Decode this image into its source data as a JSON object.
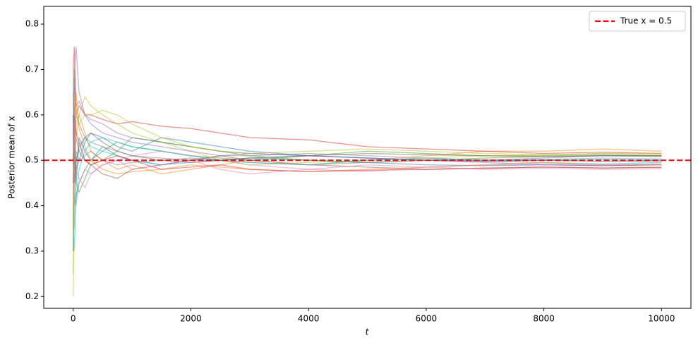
{
  "chart_data": {
    "type": "line",
    "xlabel": "t",
    "ylabel": "Posterior mean of x",
    "x": [
      0,
      20,
      50,
      100,
      200,
      300,
      500,
      750,
      1000,
      1500,
      2000,
      2500,
      3000,
      4000,
      5000,
      6000,
      7000,
      8000,
      9000,
      10000
    ],
    "series": [
      {
        "color": "#1f77b4",
        "values": [
          0.5,
          0.62,
          0.45,
          0.55,
          0.52,
          0.5,
          0.53,
          0.51,
          0.5,
          0.49,
          0.5,
          0.5,
          0.505,
          0.5,
          0.495,
          0.49,
          0.488,
          0.49,
          0.488,
          0.49
        ]
      },
      {
        "color": "#ff7f0e",
        "values": [
          0.3,
          0.7,
          0.55,
          0.6,
          0.56,
          0.52,
          0.5,
          0.48,
          0.49,
          0.47,
          0.48,
          0.49,
          0.5,
          0.49,
          0.5,
          0.51,
          0.52,
          0.52,
          0.525,
          0.52
        ]
      },
      {
        "color": "#2ca02c",
        "values": [
          0.6,
          0.4,
          0.42,
          0.45,
          0.48,
          0.5,
          0.52,
          0.54,
          0.53,
          0.52,
          0.51,
          0.505,
          0.5,
          0.51,
          0.52,
          0.515,
          0.51,
          0.51,
          0.512,
          0.51
        ]
      },
      {
        "color": "#d62728",
        "values": [
          0.7,
          0.75,
          0.6,
          0.62,
          0.6,
          0.6,
          0.59,
          0.58,
          0.585,
          0.575,
          0.57,
          0.56,
          0.55,
          0.545,
          0.53,
          0.525,
          0.52,
          0.515,
          0.518,
          0.515
        ]
      },
      {
        "color": "#9467bd",
        "values": [
          0.55,
          0.68,
          0.62,
          0.63,
          0.6,
          0.59,
          0.58,
          0.56,
          0.55,
          0.54,
          0.53,
          0.52,
          0.515,
          0.51,
          0.505,
          0.5,
          0.495,
          0.49,
          0.488,
          0.49
        ]
      },
      {
        "color": "#8c564b",
        "values": [
          0.45,
          0.5,
          0.55,
          0.52,
          0.5,
          0.49,
          0.47,
          0.46,
          0.48,
          0.49,
          0.5,
          0.51,
          0.5,
          0.49,
          0.485,
          0.48,
          0.482,
          0.485,
          0.483,
          0.485
        ]
      },
      {
        "color": "#e377c2",
        "values": [
          0.65,
          0.5,
          0.4,
          0.45,
          0.48,
          0.47,
          0.49,
          0.5,
          0.51,
          0.52,
          0.51,
          0.5,
          0.49,
          0.48,
          0.475,
          0.485,
          0.49,
          0.492,
          0.49,
          0.49
        ]
      },
      {
        "color": "#7f7f7f",
        "values": [
          0.5,
          0.55,
          0.6,
          0.58,
          0.55,
          0.54,
          0.53,
          0.52,
          0.51,
          0.505,
          0.5,
          0.51,
          0.51,
          0.515,
          0.51,
          0.505,
          0.5,
          0.5,
          0.502,
          0.5
        ]
      },
      {
        "color": "#bcbd22",
        "values": [
          0.2,
          0.45,
          0.58,
          0.6,
          0.64,
          0.62,
          0.6,
          0.58,
          0.56,
          0.54,
          0.52,
          0.5,
          0.49,
          0.495,
          0.5,
          0.505,
          0.51,
          0.512,
          0.515,
          0.515
        ]
      },
      {
        "color": "#17becf",
        "values": [
          0.4,
          0.35,
          0.5,
          0.52,
          0.55,
          0.53,
          0.52,
          0.51,
          0.5,
          0.49,
          0.495,
          0.5,
          0.505,
          0.51,
          0.505,
          0.5,
          0.498,
          0.495,
          0.492,
          0.495
        ]
      },
      {
        "color": "#1f77b4",
        "values": [
          0.6,
          0.52,
          0.48,
          0.5,
          0.54,
          0.56,
          0.55,
          0.53,
          0.52,
          0.55,
          0.54,
          0.53,
          0.52,
          0.51,
          0.505,
          0.5,
          0.498,
          0.5,
          0.498,
          0.5
        ]
      },
      {
        "color": "#ff7f0e",
        "values": [
          0.35,
          0.6,
          0.65,
          0.57,
          0.53,
          0.5,
          0.48,
          0.47,
          0.475,
          0.48,
          0.49,
          0.485,
          0.48,
          0.475,
          0.48,
          0.485,
          0.49,
          0.495,
          0.49,
          0.492
        ]
      },
      {
        "color": "#2ca02c",
        "values": [
          0.7,
          0.5,
          0.45,
          0.43,
          0.46,
          0.49,
          0.5,
          0.52,
          0.55,
          0.54,
          0.53,
          0.52,
          0.51,
          0.5,
          0.495,
          0.5,
          0.505,
          0.508,
          0.51,
          0.51
        ]
      },
      {
        "color": "#d62728",
        "values": [
          0.45,
          0.6,
          0.56,
          0.54,
          0.5,
          0.49,
          0.5,
          0.51,
          0.5,
          0.48,
          0.485,
          0.49,
          0.48,
          0.475,
          0.478,
          0.48,
          0.483,
          0.485,
          0.483,
          0.484
        ]
      },
      {
        "color": "#9467bd",
        "values": [
          0.3,
          0.7,
          0.75,
          0.65,
          0.6,
          0.58,
          0.56,
          0.55,
          0.54,
          0.53,
          0.52,
          0.51,
          0.515,
          0.51,
          0.505,
          0.5,
          0.5,
          0.505,
          0.51,
          0.508
        ]
      },
      {
        "color": "#8c564b",
        "values": [
          0.5,
          0.45,
          0.5,
          0.53,
          0.55,
          0.56,
          0.54,
          0.52,
          0.51,
          0.5,
          0.495,
          0.5,
          0.505,
          0.51,
          0.515,
          0.512,
          0.51,
          0.508,
          0.51,
          0.51
        ]
      },
      {
        "color": "#e377c2",
        "values": [
          0.4,
          0.62,
          0.48,
          0.46,
          0.44,
          0.47,
          0.49,
          0.5,
          0.48,
          0.49,
          0.5,
          0.48,
          0.47,
          0.48,
          0.49,
          0.485,
          0.48,
          0.482,
          0.48,
          0.481
        ]
      },
      {
        "color": "#7f7f7f",
        "values": [
          0.55,
          0.48,
          0.52,
          0.5,
          0.51,
          0.52,
          0.5,
          0.49,
          0.495,
          0.5,
          0.505,
          0.5,
          0.495,
          0.49,
          0.495,
          0.5,
          0.498,
          0.5,
          0.498,
          0.497
        ]
      },
      {
        "color": "#bcbd22",
        "values": [
          0.25,
          0.5,
          0.62,
          0.58,
          0.6,
          0.6,
          0.61,
          0.6,
          0.58,
          0.55,
          0.53,
          0.52,
          0.515,
          0.52,
          0.525,
          0.52,
          0.515,
          0.512,
          0.515,
          0.512
        ]
      },
      {
        "color": "#17becf",
        "values": [
          0.35,
          0.3,
          0.42,
          0.48,
          0.52,
          0.54,
          0.55,
          0.54,
          0.53,
          0.52,
          0.51,
          0.5,
          0.495,
          0.49,
          0.5,
          0.505,
          0.5,
          0.502,
          0.505,
          0.503
        ]
      }
    ],
    "reference_line": {
      "value": 0.5,
      "label": "True x = 0.5",
      "color": "#e41a1c",
      "dashed": true
    },
    "xlim": [
      -500,
      10500
    ],
    "xticks": [
      0,
      2000,
      4000,
      6000,
      8000,
      10000
    ],
    "ylim": [
      0.174,
      0.839
    ],
    "yticks": [
      0.2,
      0.3,
      0.4,
      0.5,
      0.6,
      0.7,
      0.8
    ],
    "legend": "upper right",
    "line_opacity": 0.5
  }
}
